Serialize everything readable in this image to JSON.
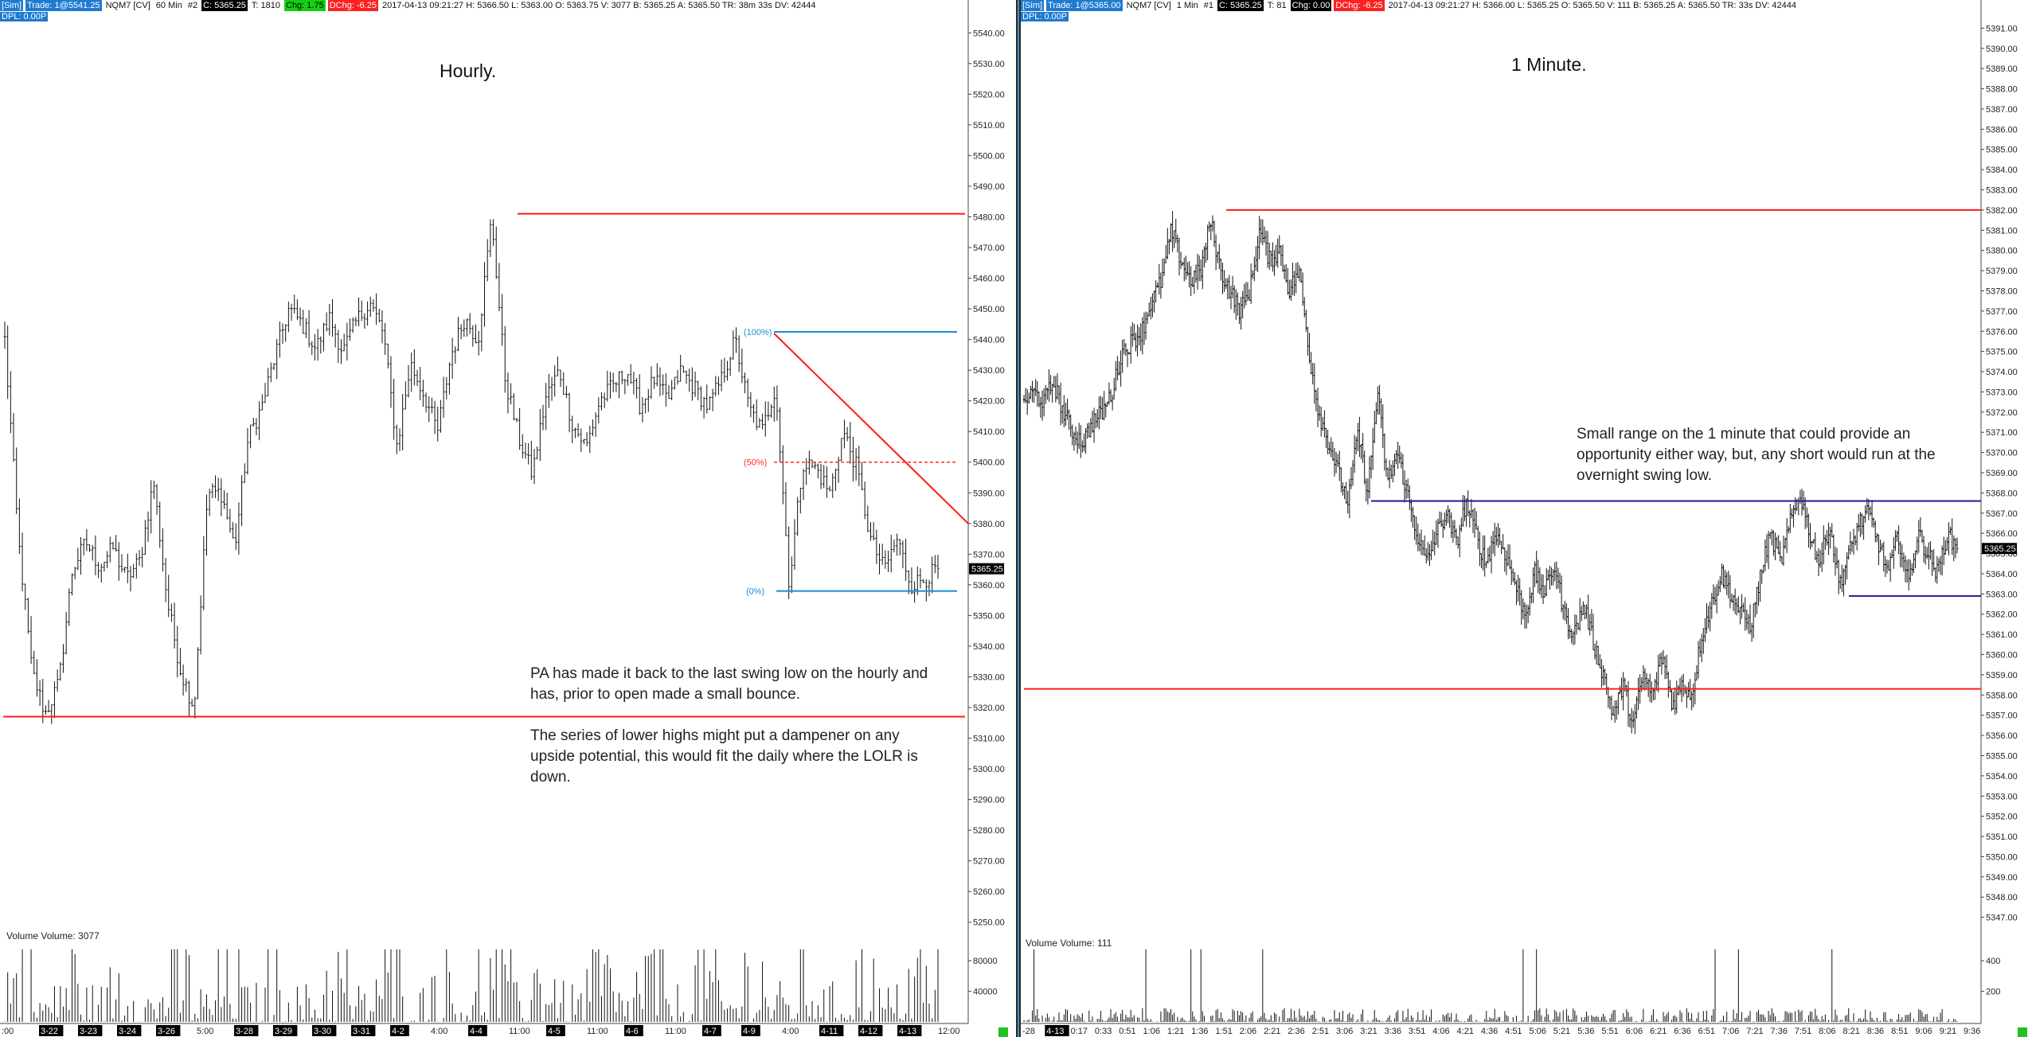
{
  "left_header": {
    "segments": [
      {
        "text": "[Sim]",
        "style": "blue"
      },
      {
        "text": "Trade: 1@5541.25",
        "style": "blue"
      },
      {
        "text": "NQM7 [CV]",
        "style": "plain"
      },
      {
        "text": "60 Min",
        "style": "plain"
      },
      {
        "text": "#2",
        "style": "plain"
      },
      {
        "text": "C: 5365.25",
        "style": "black"
      },
      {
        "text": "T: 1810",
        "style": "plain"
      },
      {
        "text": "Chg: 1.75",
        "style": "green"
      },
      {
        "text": "DChg: -6.25",
        "style": "red"
      },
      {
        "text": "2017-04-13 09:21:27 H: 5366.50 L: 5363.00 O: 5363.75 V: 3077 B: 5365.25 A: 5365.50 TR: 38m 33s DV: 42444",
        "style": "plain"
      }
    ],
    "line2": "DPL: 0.00P"
  },
  "right_header": {
    "segments": [
      {
        "text": "[Sim]",
        "style": "blue"
      },
      {
        "text": "Trade: 1@5365.00",
        "style": "blue"
      },
      {
        "text": "NQM7 [CV]",
        "style": "plain"
      },
      {
        "text": "1 Min",
        "style": "plain"
      },
      {
        "text": "#1",
        "style": "plain"
      },
      {
        "text": "C: 5365.25",
        "style": "black"
      },
      {
        "text": "T: 81",
        "style": "plain"
      },
      {
        "text": "Chg: 0.00",
        "style": "black"
      },
      {
        "text": "DChg: -6.25",
        "style": "red"
      },
      {
        "text": "2017-04-13 09:21:27 H: 5366.00 L: 5365.25 O: 5365.50 V: 111 B: 5365.25 A: 5365.50 TR: 33s DV: 42444",
        "style": "plain"
      }
    ],
    "line2": "DPL: 0.00P"
  },
  "left_title": "Hourly.",
  "right_title": "1 Minute.",
  "left_note_1": "PA has made it back to the last swing low on the hourly and has, prior to open made a small bounce.",
  "left_note_2": "The series of lower highs might put a dampener on any upside potential, this would fit the daily where the LOLR is down.",
  "right_note": "Small range on the 1 minute that could provide an opportunity either way, but, any short would run at the overnight swing low.",
  "left_volume_label": "Volume  Volume: 3077",
  "right_volume_label": "Volume  Volume: 111",
  "colors": {
    "candle": "#111111",
    "red_line": "#ff1a1a",
    "blue_line": "#1a8fd0",
    "navy_line": "#1a1aa0",
    "fib_red": "#ff2a2a"
  },
  "chart_data": [
    {
      "type": "ohlc",
      "symbol": "NQM7",
      "interval": "60 Min",
      "yaxis": {
        "ylim": [
          5245,
          5545
        ],
        "ticks": [
          5250,
          5260,
          5270,
          5280,
          5290,
          5300,
          5310,
          5320,
          5330,
          5340,
          5350,
          5360,
          5370,
          5380,
          5390,
          5400,
          5410,
          5420,
          5430,
          5440,
          5450,
          5460,
          5470,
          5480,
          5490,
          5500,
          5510,
          5520,
          5530,
          5540
        ]
      },
      "last_price": "5365.25",
      "x_tick_labels": [
        {
          "label": ":00",
          "boxed": false
        },
        {
          "label": "3-22",
          "boxed": true
        },
        {
          "label": "3-23",
          "boxed": true
        },
        {
          "label": "3-24",
          "boxed": true
        },
        {
          "label": "3-26",
          "boxed": true
        },
        {
          "label": "5:00",
          "boxed": false
        },
        {
          "label": "3-28",
          "boxed": true
        },
        {
          "label": "3-29",
          "boxed": true
        },
        {
          "label": "3-30",
          "boxed": true
        },
        {
          "label": "3-31",
          "boxed": true
        },
        {
          "label": "4-2",
          "boxed": true
        },
        {
          "label": "4:00",
          "boxed": false
        },
        {
          "label": "4-4",
          "boxed": true
        },
        {
          "label": "11:00",
          "boxed": false
        },
        {
          "label": "4-5",
          "boxed": true
        },
        {
          "label": "11:00",
          "boxed": false
        },
        {
          "label": "4-6",
          "boxed": true
        },
        {
          "label": "11:00",
          "boxed": false
        },
        {
          "label": "4-7",
          "boxed": true
        },
        {
          "label": "4-9",
          "boxed": true
        },
        {
          "label": "4:00",
          "boxed": false
        },
        {
          "label": "4-11",
          "boxed": true
        },
        {
          "label": "4-12",
          "boxed": true
        },
        {
          "label": "4-13",
          "boxed": true
        },
        {
          "label": "12:00",
          "boxed": false
        }
      ],
      "price_path": [
        5440,
        5375,
        5332,
        5318,
        5328,
        5365,
        5374,
        5366,
        5372,
        5362,
        5368,
        5394,
        5355,
        5332,
        5320,
        5390,
        5390,
        5372,
        5408,
        5418,
        5435,
        5450,
        5445,
        5437,
        5447,
        5436,
        5446,
        5452,
        5442,
        5405,
        5432,
        5422,
        5410,
        5435,
        5447,
        5440,
        5480,
        5427,
        5408,
        5396,
        5421,
        5430,
        5412,
        5405,
        5420,
        5425,
        5430,
        5418,
        5427,
        5420,
        5430,
        5424,
        5418,
        5427,
        5440,
        5418,
        5410,
        5425,
        5360,
        5400,
        5398,
        5390,
        5410,
        5398,
        5375,
        5365,
        5375,
        5360,
        5362,
        5365
      ],
      "volume": {
        "ylim": [
          0,
          100000
        ],
        "ticks": [
          40000,
          80000
        ]
      },
      "levels": [
        {
          "name": "swing-high",
          "price": 5481,
          "color": "red"
        },
        {
          "name": "swing-low",
          "price": 5317,
          "color": "red"
        },
        {
          "name": "fib-100",
          "price": 5442.5,
          "label": "(100%)",
          "color": "blue"
        },
        {
          "name": "fib-50",
          "price": 5400,
          "label": "(50%)",
          "color": "red",
          "dashed": true
        },
        {
          "name": "fib-0",
          "price": 5358,
          "label": "(0%)",
          "color": "blue"
        }
      ],
      "trendline": {
        "start_price": 5442,
        "end_price": 5380
      }
    },
    {
      "type": "ohlc",
      "symbol": "NQM7",
      "interval": "1 Min",
      "yaxis": {
        "ylim": [
          5346,
          5392
        ],
        "ticks": [
          5347,
          5348,
          5349,
          5350,
          5351,
          5352,
          5353,
          5354,
          5355,
          5356,
          5357,
          5358,
          5359,
          5360,
          5361,
          5362,
          5363,
          5364,
          5365,
          5366,
          5367,
          5368,
          5369,
          5370,
          5371,
          5372,
          5373,
          5374,
          5375,
          5376,
          5377,
          5378,
          5379,
          5380,
          5381,
          5382,
          5383,
          5384,
          5385,
          5386,
          5387,
          5388,
          5389,
          5390,
          5391
        ]
      },
      "last_price": "5365.25",
      "x_tick_labels": [
        {
          "label": "-28",
          "boxed": false
        },
        {
          "label": "4-13",
          "boxed": true
        },
        {
          "label": "0:17",
          "boxed": false
        },
        {
          "label": "0:33",
          "boxed": false
        },
        {
          "label": "0:51",
          "boxed": false
        },
        {
          "label": "1:06",
          "boxed": false
        },
        {
          "label": "1:21",
          "boxed": false
        },
        {
          "label": "1:36",
          "boxed": false
        },
        {
          "label": "1:51",
          "boxed": false
        },
        {
          "label": "2:06",
          "boxed": false
        },
        {
          "label": "2:21",
          "boxed": false
        },
        {
          "label": "2:36",
          "boxed": false
        },
        {
          "label": "2:51",
          "boxed": false
        },
        {
          "label": "3:06",
          "boxed": false
        },
        {
          "label": "3:21",
          "boxed": false
        },
        {
          "label": "3:36",
          "boxed": false
        },
        {
          "label": "3:51",
          "boxed": false
        },
        {
          "label": "4:06",
          "boxed": false
        },
        {
          "label": "4:21",
          "boxed": false
        },
        {
          "label": "4:36",
          "boxed": false
        },
        {
          "label": "4:51",
          "boxed": false
        },
        {
          "label": "5:06",
          "boxed": false
        },
        {
          "label": "5:21",
          "boxed": false
        },
        {
          "label": "5:36",
          "boxed": false
        },
        {
          "label": "5:51",
          "boxed": false
        },
        {
          "label": "6:06",
          "boxed": false
        },
        {
          "label": "6:21",
          "boxed": false
        },
        {
          "label": "6:36",
          "boxed": false
        },
        {
          "label": "6:51",
          "boxed": false
        },
        {
          "label": "7:06",
          "boxed": false
        },
        {
          "label": "7:21",
          "boxed": false
        },
        {
          "label": "7:36",
          "boxed": false
        },
        {
          "label": "7:51",
          "boxed": false
        },
        {
          "label": "8:06",
          "boxed": false
        },
        {
          "label": "8:21",
          "boxed": false
        },
        {
          "label": "8:36",
          "boxed": false
        },
        {
          "label": "8:51",
          "boxed": false
        },
        {
          "label": "9:06",
          "boxed": false
        },
        {
          "label": "9:21",
          "boxed": false
        },
        {
          "label": "9:36",
          "boxed": false
        }
      ],
      "price_path": [
        5372.5,
        5373,
        5372.5,
        5373.5,
        5372,
        5371,
        5370.5,
        5371.5,
        5372,
        5373,
        5375,
        5375.5,
        5376,
        5377.5,
        5378.5,
        5381,
        5379.5,
        5378.5,
        5379,
        5381.5,
        5379,
        5378,
        5377,
        5378,
        5381,
        5379.5,
        5380,
        5378,
        5379,
        5375,
        5372,
        5370.5,
        5369,
        5367.5,
        5371,
        5368,
        5373,
        5368.5,
        5370,
        5368,
        5366,
        5364.5,
        5366,
        5367,
        5365.5,
        5367.5,
        5366,
        5364.5,
        5366,
        5365,
        5363.5,
        5362,
        5364,
        5363,
        5364.5,
        5362,
        5361,
        5362.5,
        5360.5,
        5359,
        5357,
        5358.5,
        5356.5,
        5359,
        5358,
        5360,
        5357.5,
        5358.5,
        5358,
        5361,
        5362.5,
        5364,
        5363,
        5362,
        5361.5,
        5364,
        5366,
        5364.5,
        5366.5,
        5368,
        5366,
        5364.5,
        5366.5,
        5363.5,
        5365,
        5366.5,
        5367,
        5365.5,
        5364,
        5366,
        5363.5,
        5366,
        5365,
        5364,
        5366,
        5365.25
      ],
      "volume": {
        "ylim": [
          0,
          500
        ],
        "ticks": [
          200,
          400
        ]
      },
      "levels": [
        {
          "name": "overnight-high",
          "price": 5382,
          "color": "red"
        },
        {
          "name": "overnight-low",
          "price": 5358.3,
          "color": "red"
        },
        {
          "name": "range-high",
          "price": 5367.6,
          "color": "navy"
        },
        {
          "name": "range-low",
          "price": 5362.9,
          "color": "navy"
        }
      ]
    }
  ]
}
